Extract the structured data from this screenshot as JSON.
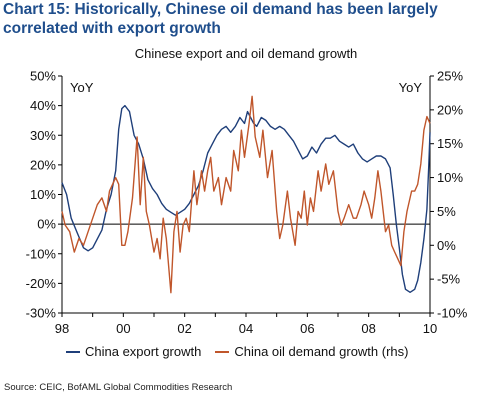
{
  "header": {
    "title": "Chart 15:  Historically, Chinese oil demand has been largely correlated with export growth"
  },
  "source": "Source: CEIC, BofAML Global Commodities Research",
  "chart_data": {
    "type": "line",
    "title": "Chinese export and oil demand growth",
    "left_axis_unit_label": "YoY",
    "right_axis_unit_label": "YoY",
    "xlim": [
      1998.0,
      2010.0
    ],
    "x_ticks": [
      1998,
      2000,
      2002,
      2004,
      2006,
      2008,
      2010
    ],
    "x_tick_labels": [
      "98",
      "00",
      "02",
      "04",
      "06",
      "08",
      "10"
    ],
    "ylim_left": [
      -30,
      50
    ],
    "y_ticks_left": [
      -30,
      -20,
      -10,
      0,
      10,
      20,
      30,
      40,
      50
    ],
    "y_tick_labels_left": [
      "-30%",
      "-20%",
      "-10%",
      "0%",
      "10%",
      "20%",
      "30%",
      "40%",
      "50%"
    ],
    "ylim_right": [
      -10,
      25
    ],
    "y_ticks_right": [
      -10,
      -5,
      0,
      5,
      10,
      15,
      20,
      25
    ],
    "y_tick_labels_right": [
      "-10%",
      "-5%",
      "0%",
      "5%",
      "10%",
      "15%",
      "20%",
      "25%"
    ],
    "grid": false,
    "legend_position": "bottom",
    "series": [
      {
        "name": "China export growth",
        "axis": "left",
        "color": "#1f3f7a",
        "points": [
          [
            1998.0,
            14
          ],
          [
            1998.15,
            10
          ],
          [
            1998.3,
            2
          ],
          [
            1998.5,
            -3
          ],
          [
            1998.7,
            -8
          ],
          [
            1998.85,
            -9
          ],
          [
            1999.0,
            -8
          ],
          [
            1999.15,
            -5
          ],
          [
            1999.3,
            -2
          ],
          [
            1999.45,
            5
          ],
          [
            1999.6,
            10
          ],
          [
            1999.75,
            18
          ],
          [
            1999.85,
            32
          ],
          [
            1999.95,
            39
          ],
          [
            2000.05,
            40
          ],
          [
            2000.2,
            38
          ],
          [
            2000.35,
            30
          ],
          [
            2000.5,
            27
          ],
          [
            2000.65,
            22
          ],
          [
            2000.8,
            15
          ],
          [
            2000.95,
            12
          ],
          [
            2001.1,
            10
          ],
          [
            2001.25,
            7
          ],
          [
            2001.4,
            5
          ],
          [
            2001.55,
            4
          ],
          [
            2001.7,
            3
          ],
          [
            2001.85,
            4
          ],
          [
            2002.0,
            5
          ],
          [
            2002.15,
            7
          ],
          [
            2002.3,
            10
          ],
          [
            2002.45,
            13
          ],
          [
            2002.6,
            18
          ],
          [
            2002.75,
            24
          ],
          [
            2002.9,
            27
          ],
          [
            2003.05,
            30
          ],
          [
            2003.2,
            32
          ],
          [
            2003.35,
            33
          ],
          [
            2003.5,
            31
          ],
          [
            2003.65,
            33
          ],
          [
            2003.8,
            36
          ],
          [
            2003.95,
            34
          ],
          [
            2004.05,
            38
          ],
          [
            2004.15,
            36
          ],
          [
            2004.25,
            34
          ],
          [
            2004.35,
            33
          ],
          [
            2004.5,
            36
          ],
          [
            2004.65,
            35
          ],
          [
            2004.8,
            33
          ],
          [
            2004.95,
            32
          ],
          [
            2005.1,
            33
          ],
          [
            2005.25,
            32
          ],
          [
            2005.4,
            30
          ],
          [
            2005.55,
            28
          ],
          [
            2005.7,
            25
          ],
          [
            2005.85,
            22
          ],
          [
            2006.0,
            23
          ],
          [
            2006.15,
            26
          ],
          [
            2006.3,
            24
          ],
          [
            2006.45,
            27
          ],
          [
            2006.6,
            29
          ],
          [
            2006.75,
            29
          ],
          [
            2006.9,
            30
          ],
          [
            2007.05,
            28
          ],
          [
            2007.2,
            27
          ],
          [
            2007.35,
            26
          ],
          [
            2007.5,
            27
          ],
          [
            2007.65,
            24
          ],
          [
            2007.8,
            22
          ],
          [
            2007.95,
            21
          ],
          [
            2008.1,
            22
          ],
          [
            2008.25,
            23
          ],
          [
            2008.4,
            23
          ],
          [
            2008.55,
            22
          ],
          [
            2008.7,
            19
          ],
          [
            2008.8,
            10
          ],
          [
            2008.9,
            0
          ],
          [
            2009.0,
            -8
          ],
          [
            2009.1,
            -17
          ],
          [
            2009.2,
            -22
          ],
          [
            2009.35,
            -23
          ],
          [
            2009.5,
            -22
          ],
          [
            2009.6,
            -19
          ],
          [
            2009.7,
            -13
          ],
          [
            2009.8,
            -5
          ],
          [
            2009.9,
            5
          ],
          [
            2009.96,
            20
          ],
          [
            2010.0,
            31
          ]
        ]
      },
      {
        "name": "China oil demand growth (rhs)",
        "axis": "right",
        "color": "#c0562b",
        "points": [
          [
            1998.0,
            5
          ],
          [
            1998.1,
            3
          ],
          [
            1998.25,
            2
          ],
          [
            1998.4,
            -1
          ],
          [
            1998.55,
            1
          ],
          [
            1998.7,
            0
          ],
          [
            1998.85,
            2
          ],
          [
            1999.0,
            4
          ],
          [
            1999.15,
            6
          ],
          [
            1999.3,
            7
          ],
          [
            1999.45,
            5
          ],
          [
            1999.55,
            8
          ],
          [
            1999.65,
            9
          ],
          [
            1999.75,
            10
          ],
          [
            1999.85,
            9
          ],
          [
            1999.95,
            0
          ],
          [
            2000.05,
            0
          ],
          [
            2000.15,
            2
          ],
          [
            2000.3,
            7
          ],
          [
            2000.45,
            16
          ],
          [
            2000.55,
            6
          ],
          [
            2000.65,
            13
          ],
          [
            2000.75,
            5
          ],
          [
            2000.85,
            3
          ],
          [
            2001.0,
            -1
          ],
          [
            2001.1,
            1
          ],
          [
            2001.2,
            -2
          ],
          [
            2001.3,
            4
          ],
          [
            2001.4,
            1
          ],
          [
            2001.55,
            -7
          ],
          [
            2001.65,
            2
          ],
          [
            2001.75,
            5
          ],
          [
            2001.85,
            -1
          ],
          [
            2001.95,
            3
          ],
          [
            2002.05,
            4
          ],
          [
            2002.15,
            2
          ],
          [
            2002.3,
            11
          ],
          [
            2002.4,
            6
          ],
          [
            2002.55,
            11
          ],
          [
            2002.65,
            8
          ],
          [
            2002.75,
            11
          ],
          [
            2002.85,
            13
          ],
          [
            2002.95,
            8
          ],
          [
            2003.1,
            10
          ],
          [
            2003.2,
            6
          ],
          [
            2003.35,
            10
          ],
          [
            2003.5,
            8
          ],
          [
            2003.6,
            14
          ],
          [
            2003.75,
            11
          ],
          [
            2003.85,
            17
          ],
          [
            2003.95,
            13
          ],
          [
            2004.1,
            18
          ],
          [
            2004.2,
            22
          ],
          [
            2004.3,
            16
          ],
          [
            2004.45,
            13
          ],
          [
            2004.55,
            17
          ],
          [
            2004.7,
            10
          ],
          [
            2004.85,
            14
          ],
          [
            2005.0,
            5
          ],
          [
            2005.1,
            1
          ],
          [
            2005.2,
            3
          ],
          [
            2005.35,
            8
          ],
          [
            2005.45,
            4
          ],
          [
            2005.6,
            0
          ],
          [
            2005.7,
            5
          ],
          [
            2005.8,
            4
          ],
          [
            2005.9,
            8
          ],
          [
            2006.0,
            3
          ],
          [
            2006.1,
            7
          ],
          [
            2006.2,
            5
          ],
          [
            2006.35,
            11
          ],
          [
            2006.45,
            8
          ],
          [
            2006.6,
            12
          ],
          [
            2006.7,
            9
          ],
          [
            2006.85,
            11
          ],
          [
            2007.0,
            5
          ],
          [
            2007.1,
            3
          ],
          [
            2007.2,
            4
          ],
          [
            2007.35,
            6
          ],
          [
            2007.5,
            4
          ],
          [
            2007.6,
            4
          ],
          [
            2007.75,
            6
          ],
          [
            2007.85,
            8
          ],
          [
            2008.0,
            6
          ],
          [
            2008.1,
            4
          ],
          [
            2008.2,
            7
          ],
          [
            2008.3,
            11
          ],
          [
            2008.4,
            8
          ],
          [
            2008.55,
            2
          ],
          [
            2008.65,
            3
          ],
          [
            2008.75,
            0
          ],
          [
            2008.85,
            -1
          ],
          [
            2008.95,
            -2
          ],
          [
            2009.05,
            -3
          ],
          [
            2009.15,
            2
          ],
          [
            2009.25,
            5
          ],
          [
            2009.4,
            8
          ],
          [
            2009.5,
            8
          ],
          [
            2009.6,
            9
          ],
          [
            2009.7,
            12
          ],
          [
            2009.8,
            17
          ],
          [
            2009.9,
            19
          ],
          [
            2010.0,
            18
          ]
        ]
      }
    ]
  }
}
